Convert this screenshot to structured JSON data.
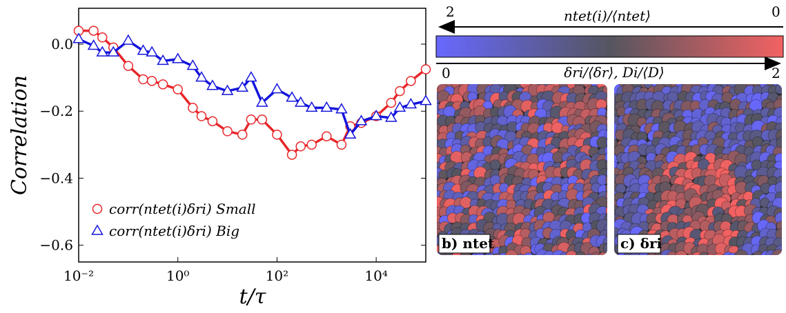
{
  "chart_data": {
    "type": "line",
    "ylabel": "Correlation",
    "xlabel": "t/τ",
    "x": [
      0.01,
      0.02,
      0.03,
      0.05,
      0.1,
      0.2,
      0.3,
      0.5,
      1,
      2,
      3,
      5,
      10,
      20,
      30,
      50,
      100,
      200,
      300,
      500,
      1000,
      2000,
      3000,
      5000,
      10000,
      20000,
      30000,
      50000,
      100000
    ],
    "series": [
      {
        "name": "corr(ntet(i)δri) Small",
        "color": "#e8262a",
        "marker": "circle",
        "values": [
          0.04,
          0.04,
          0.02,
          -0.01,
          -0.065,
          -0.105,
          -0.11,
          -0.12,
          -0.135,
          -0.19,
          -0.215,
          -0.23,
          -0.26,
          -0.27,
          -0.225,
          -0.225,
          -0.27,
          -0.33,
          -0.305,
          -0.3,
          -0.275,
          -0.3,
          -0.245,
          -0.235,
          -0.215,
          -0.175,
          -0.14,
          -0.11,
          -0.075
        ]
      },
      {
        "name": "corr(ntet(i)δri) Big",
        "color": "#1414dc",
        "marker": "triangle",
        "values": [
          0.015,
          -0.005,
          -0.025,
          -0.025,
          0.01,
          -0.02,
          -0.025,
          -0.05,
          -0.045,
          -0.065,
          -0.1,
          -0.125,
          -0.14,
          -0.13,
          -0.1,
          -0.175,
          -0.135,
          -0.16,
          -0.175,
          -0.19,
          -0.19,
          -0.195,
          -0.27,
          -0.23,
          -0.215,
          -0.22,
          -0.19,
          -0.18,
          -0.17
        ]
      }
    ],
    "xscale": "log",
    "xlim": [
      0.01,
      100000
    ],
    "ylim": [
      -0.65,
      0.107
    ],
    "xticks": [
      {
        "value": 0.01,
        "label": "10⁻²"
      },
      {
        "value": 1,
        "label": "10⁰"
      },
      {
        "value": 100,
        "label": "10²"
      },
      {
        "value": 10000,
        "label": "10⁴"
      }
    ],
    "yticks": [
      {
        "value": 0,
        "label": "0.0"
      },
      {
        "value": -0.2,
        "label": "−0.2"
      },
      {
        "value": -0.4,
        "label": "−0.4"
      },
      {
        "value": -0.6,
        "label": "−0.6"
      }
    ]
  },
  "colorbar": {
    "top_label": "ntet(i)/⟨ntet⟩",
    "top_left": "2",
    "top_right": "0",
    "bottom_label": "δri/⟨δr⟩, Di/⟨D⟩",
    "bottom_left": "0",
    "bottom_right": "2"
  },
  "panels": [
    {
      "label": "b) ntet"
    },
    {
      "label": "c) δri"
    }
  ]
}
